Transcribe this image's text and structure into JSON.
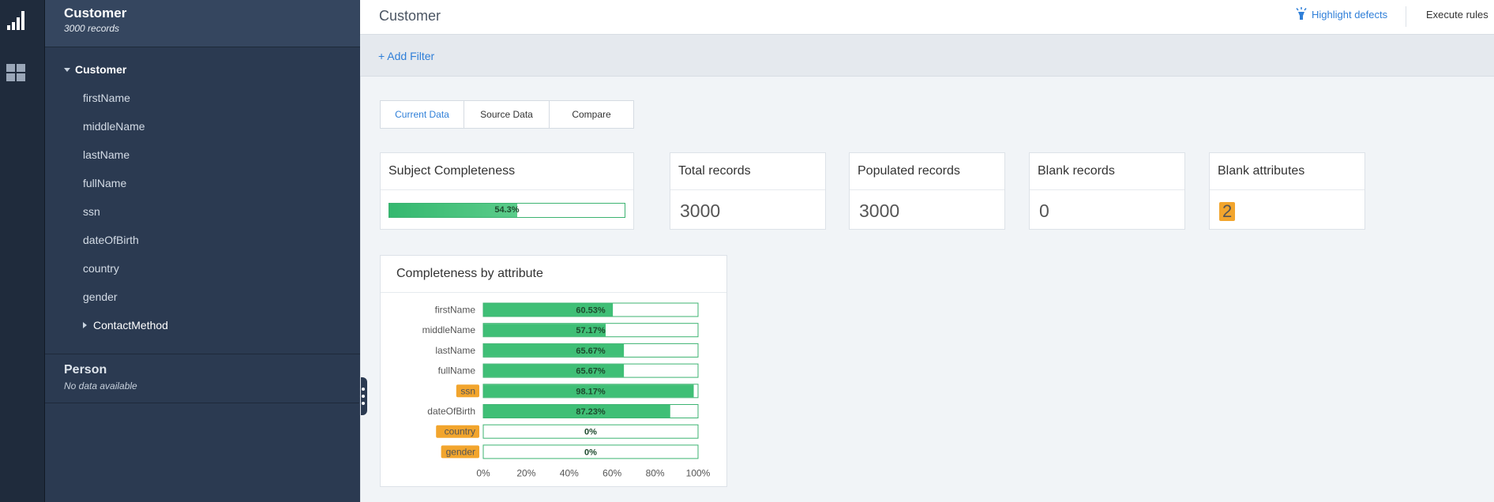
{
  "rail": {
    "icons": [
      "bar-chart-icon",
      "dashboard-grid-icon"
    ]
  },
  "sidebar": {
    "header": {
      "title": "Customer",
      "subtitle": "3000 records"
    },
    "tree": {
      "root": "Customer",
      "items": [
        "firstName",
        "middleName",
        "lastName",
        "fullName",
        "ssn",
        "dateOfBirth",
        "country",
        "gender"
      ],
      "sub_group": "ContactMethod"
    },
    "person": {
      "title": "Person",
      "subtitle": "No data available"
    }
  },
  "topbar": {
    "title": "Customer",
    "highlight_label": "Highlight defects",
    "execute_label": "Execute rules"
  },
  "filter": {
    "add_label": "+ Add Filter"
  },
  "tabs": [
    "Current Data",
    "Source Data",
    "Compare"
  ],
  "cards": {
    "subject": {
      "title": "Subject Completeness",
      "percent_label": "54.3%",
      "percent": 54.3
    },
    "total": {
      "title": "Total records",
      "value": "3000"
    },
    "populated": {
      "title": "Populated records",
      "value": "3000"
    },
    "blank": {
      "title": "Blank records",
      "value": "0"
    },
    "blank_attr": {
      "title": "Blank attributes",
      "value": "2"
    }
  },
  "colors": {
    "accent": "#2f7fd8",
    "bar": "#3cb371",
    "highlight": "#f2a52d",
    "sidebar": "#2b3a51"
  },
  "chart_data": {
    "type": "bar",
    "orientation": "horizontal",
    "title": "Completeness by attribute",
    "categories": [
      "firstName",
      "middleName",
      "lastName",
      "fullName",
      "ssn",
      "dateOfBirth",
      "country",
      "gender"
    ],
    "values": [
      60.53,
      57.17,
      65.67,
      65.67,
      98.17,
      87.23,
      0,
      0
    ],
    "value_labels": [
      "60.53%",
      "57.17%",
      "65.67%",
      "65.67%",
      "98.17%",
      "87.23%",
      "0%",
      "0%"
    ],
    "highlighted": [
      false,
      false,
      false,
      false,
      true,
      false,
      true,
      true
    ],
    "xlim": [
      0,
      100
    ],
    "xticks": [
      "0%",
      "20%",
      "40%",
      "60%",
      "80%",
      "100%"
    ],
    "grid": false,
    "legend": "none"
  }
}
